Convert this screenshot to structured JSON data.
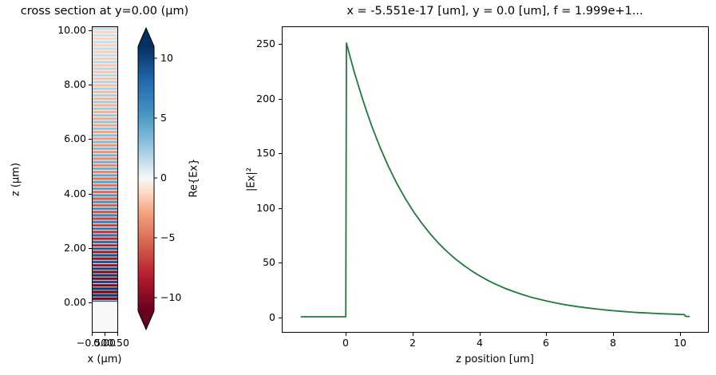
{
  "figure": {
    "background": "#ffffff",
    "text_color": "#000000"
  },
  "left_plot": {
    "title": "cross section at y=0.00 (μm)",
    "xlabel": "x (μm)",
    "ylabel": "z (μm)",
    "x_tick_labels": [
      "−0.50",
      "0.00",
      "0.50"
    ],
    "y_tick_labels": [
      "10.00",
      "8.00",
      "6.00",
      "4.00",
      "2.00",
      "0.00"
    ]
  },
  "colorbar": {
    "label": "Re{Ex}",
    "tick_labels": [
      "10",
      "5",
      "0",
      "−5",
      "−10"
    ],
    "extend": "both"
  },
  "right_plot": {
    "title": "x = -5.551e-17 [um], y = 0.0 [um], f = 1.999e+1...",
    "xlabel": "z position [um]",
    "ylabel": "|Ex|²",
    "x_tick_labels": [
      "0",
      "2",
      "4",
      "6",
      "8",
      "10"
    ],
    "y_tick_labels": [
      "0",
      "50",
      "100",
      "150",
      "200",
      "250"
    ]
  },
  "chart_data": [
    {
      "type": "heatmap",
      "title": "cross section at y=0.00 (μm)",
      "xlabel": "x (μm)",
      "ylabel": "z (μm)",
      "xlim": [
        -0.5,
        0.5
      ],
      "ylim": [
        -1.11,
        10.15
      ],
      "x_ticks": [
        -0.5,
        0.0,
        0.5
      ],
      "y_ticks": [
        10,
        8,
        6,
        4,
        2,
        0
      ],
      "colormap": "RdBu",
      "clim": [
        -11,
        11
      ],
      "colorbar_label": "Re{Ex}",
      "colorbar_ticks": [
        10,
        5,
        0,
        -5,
        -10
      ],
      "colorbar_extend": "both",
      "cmap_stops": [
        [
          -1.0,
          "#67001f"
        ],
        [
          -0.75,
          "#b2182b"
        ],
        [
          -0.5,
          "#d6604d"
        ],
        [
          -0.25,
          "#f4a582"
        ],
        [
          -0.1,
          "#fddbc7"
        ],
        [
          0.0,
          "#f7f7f7"
        ],
        [
          0.1,
          "#d1e5f0"
        ],
        [
          0.25,
          "#92c5de"
        ],
        [
          0.5,
          "#4393c3"
        ],
        [
          0.75,
          "#2166ac"
        ],
        [
          1.0,
          "#053061"
        ]
      ],
      "pattern": {
        "description": "Re{Ex} = amplitude * exp(-z/decay_length_um) * cos(2*pi*z/period_um) for z>0; uniform ~0 for z<0",
        "amplitude": 15.8,
        "decay_length_um": 4.2,
        "period_um": 0.245,
        "field_zero_below_z": 0
      }
    },
    {
      "type": "line",
      "title": "x = -5.551e-17 [um], y = 0.0 [um], f = 1.999e+1...",
      "xlabel": "z position [um]",
      "ylabel": "|Ex|²",
      "xlim": [
        -1.9,
        10.85
      ],
      "ylim": [
        -12.5,
        262.5
      ],
      "x_ticks": [
        0,
        2,
        4,
        6,
        8,
        10
      ],
      "y_ticks": [
        0,
        50,
        100,
        150,
        200,
        250
      ],
      "grid": false,
      "legend": false,
      "line_color": "#1f7a3e",
      "points": [
        [
          -1.35,
          0
        ],
        [
          -0.5,
          0
        ],
        [
          -0.02,
          0
        ],
        [
          0,
          250
        ],
        [
          0.1,
          238.4
        ],
        [
          0.25,
          221.9
        ],
        [
          0.5,
          197.0
        ],
        [
          0.75,
          174.8
        ],
        [
          1.0,
          155.2
        ],
        [
          1.25,
          137.7
        ],
        [
          1.5,
          122.2
        ],
        [
          1.75,
          108.5
        ],
        [
          2.0,
          96.3
        ],
        [
          2.25,
          85.5
        ],
        [
          2.5,
          75.9
        ],
        [
          2.75,
          67.3
        ],
        [
          3.0,
          59.8
        ],
        [
          3.25,
          53.0
        ],
        [
          3.5,
          47.1
        ],
        [
          3.75,
          41.8
        ],
        [
          4.0,
          37.1
        ],
        [
          4.25,
          32.9
        ],
        [
          4.5,
          29.2
        ],
        [
          4.75,
          25.9
        ],
        [
          5.0,
          23.0
        ],
        [
          5.25,
          20.4
        ],
        [
          5.5,
          18.1
        ],
        [
          5.75,
          16.1
        ],
        [
          6.0,
          14.3
        ],
        [
          6.25,
          12.7
        ],
        [
          6.5,
          11.2
        ],
        [
          6.75,
          10.0
        ],
        [
          7.0,
          8.9
        ],
        [
          7.25,
          7.9
        ],
        [
          7.5,
          7.0
        ],
        [
          7.75,
          6.2
        ],
        [
          8.0,
          5.5
        ],
        [
          8.25,
          4.9
        ],
        [
          8.5,
          4.3
        ],
        [
          8.75,
          3.8
        ],
        [
          9.0,
          3.4
        ],
        [
          9.25,
          3.0
        ],
        [
          9.5,
          2.7
        ],
        [
          9.75,
          2.4
        ],
        [
          10.0,
          2.1
        ],
        [
          10.1,
          2.0
        ],
        [
          10.15,
          0.3
        ],
        [
          10.25,
          0.3
        ]
      ]
    }
  ]
}
